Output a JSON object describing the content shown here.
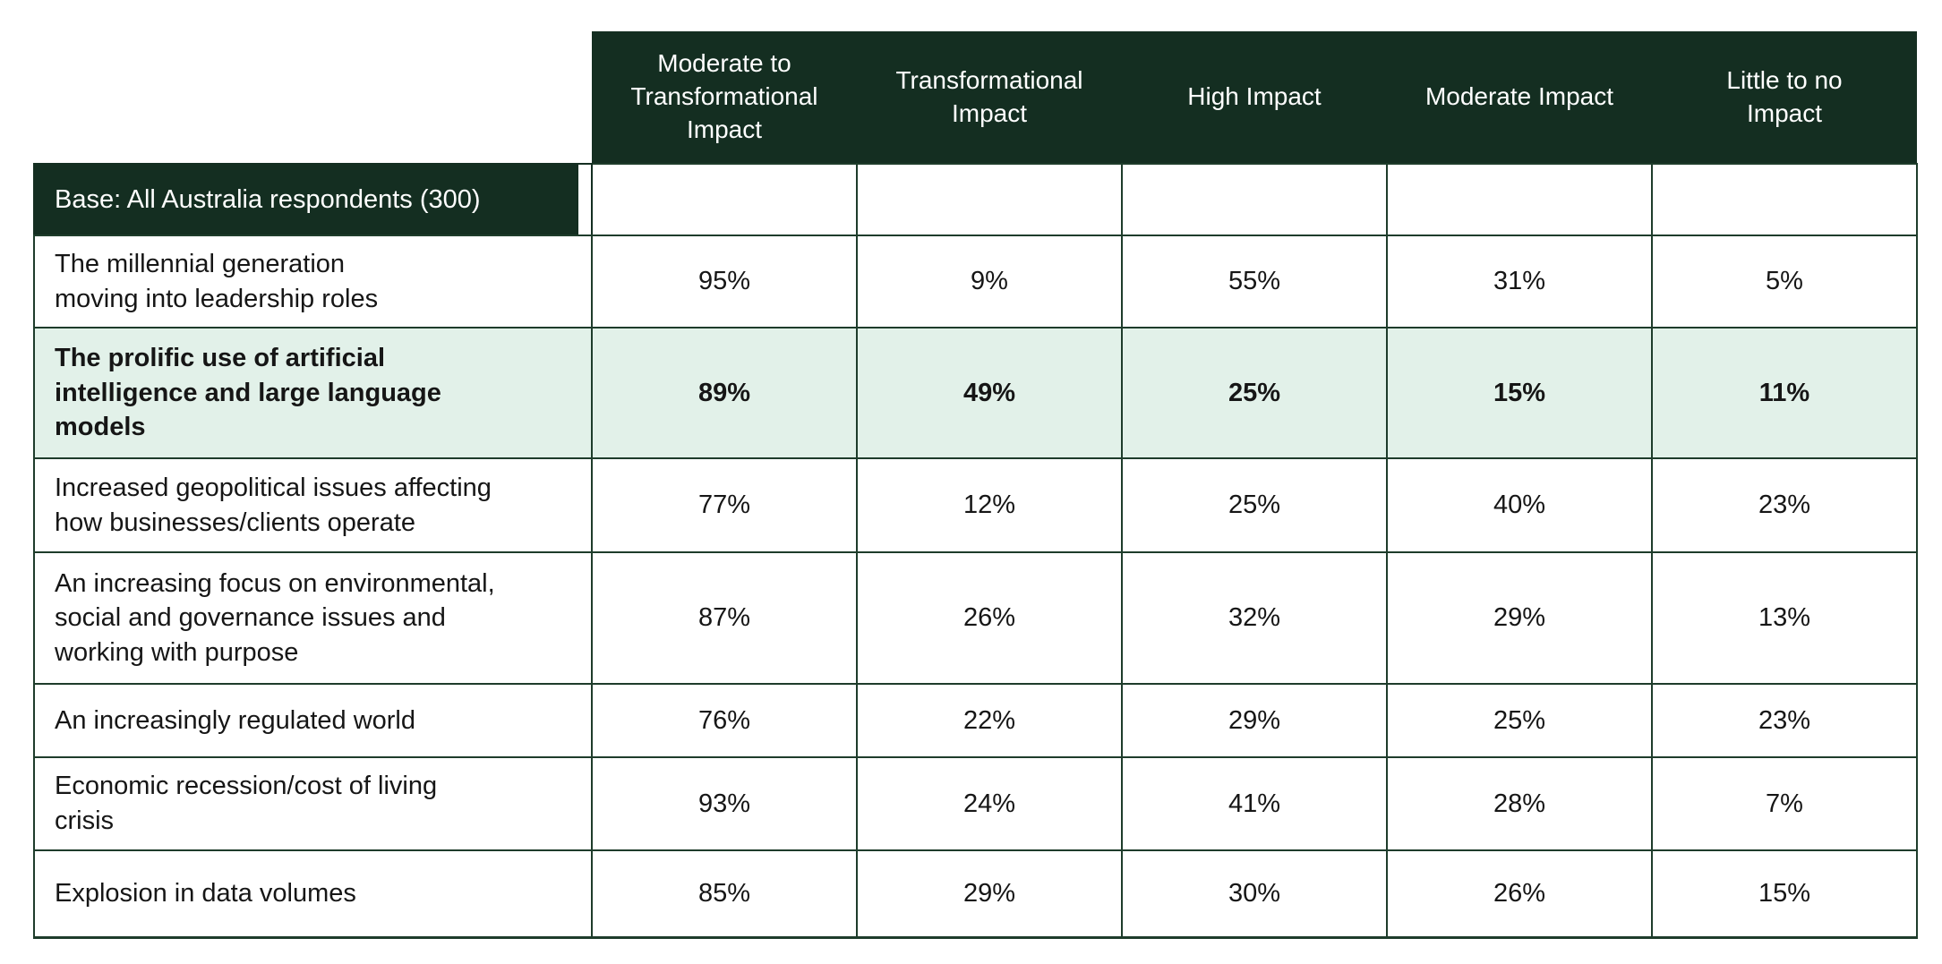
{
  "table": {
    "columns": [
      "Moderate to\nTransformational\nImpact",
      "Transformational\nImpact",
      "High Impact",
      "Moderate Impact",
      "Little to no\nImpact"
    ],
    "base_label": "Base: All Australia respondents (300)",
    "rows": [
      {
        "label": "The millennial generation\nmoving into leadership roles",
        "values": [
          "95%",
          "9%",
          "55%",
          "31%",
          "5%"
        ],
        "highlight": false
      },
      {
        "label": "The prolific use of artificial\nintelligence and large language\nmodels",
        "values": [
          "89%",
          "49%",
          "25%",
          "15%",
          "11%"
        ],
        "highlight": true
      },
      {
        "label": "Increased geopolitical issues affecting\nhow businesses/clients operate",
        "values": [
          "77%",
          "12%",
          "25%",
          "40%",
          "23%"
        ],
        "highlight": false
      },
      {
        "label": "An increasing focus on environmental,\nsocial and governance issues and\nworking with purpose",
        "values": [
          "87%",
          "26%",
          "32%",
          "29%",
          "13%"
        ],
        "highlight": false
      },
      {
        "label": "An increasingly regulated world",
        "values": [
          "76%",
          "22%",
          "29%",
          "25%",
          "23%"
        ],
        "highlight": false
      },
      {
        "label": "Economic recession/cost of living\ncrisis",
        "values": [
          "93%",
          "24%",
          "41%",
          "28%",
          "7%"
        ],
        "highlight": false
      },
      {
        "label": "Explosion in data volumes",
        "values": [
          "85%",
          "29%",
          "30%",
          "26%",
          "15%"
        ],
        "highlight": false
      }
    ]
  },
  "chart_data": {
    "type": "table",
    "unit": "%",
    "columns": [
      "Moderate to Transformational Impact",
      "Transformational Impact",
      "High Impact",
      "Moderate Impact",
      "Little to no Impact"
    ],
    "base": "All Australia respondents (300)",
    "rows": [
      {
        "label": "The millennial generation moving into leadership roles",
        "values": [
          95,
          9,
          55,
          31,
          5
        ],
        "highlighted": false
      },
      {
        "label": "The prolific use of artificial intelligence and large language models",
        "values": [
          89,
          49,
          25,
          15,
          11
        ],
        "highlighted": true
      },
      {
        "label": "Increased geopolitical issues affecting how businesses/clients operate",
        "values": [
          77,
          12,
          25,
          40,
          23
        ],
        "highlighted": false
      },
      {
        "label": "An increasing focus on environmental, social and governance issues and working with purpose",
        "values": [
          87,
          26,
          32,
          29,
          13
        ],
        "highlighted": false
      },
      {
        "label": "An increasingly regulated world",
        "values": [
          76,
          22,
          29,
          25,
          23
        ],
        "highlighted": false
      },
      {
        "label": "Economic recession/cost of living crisis",
        "values": [
          93,
          24,
          41,
          28,
          7
        ],
        "highlighted": false
      },
      {
        "label": "Explosion in data volumes",
        "values": [
          85,
          29,
          30,
          26,
          15
        ],
        "highlighted": false
      }
    ]
  },
  "colors": {
    "header_bg": "#142e21",
    "highlight_bg": "#e2f1e9",
    "border": "#1e3c2b",
    "header_text": "#ffffff",
    "body_text": "#161616"
  }
}
